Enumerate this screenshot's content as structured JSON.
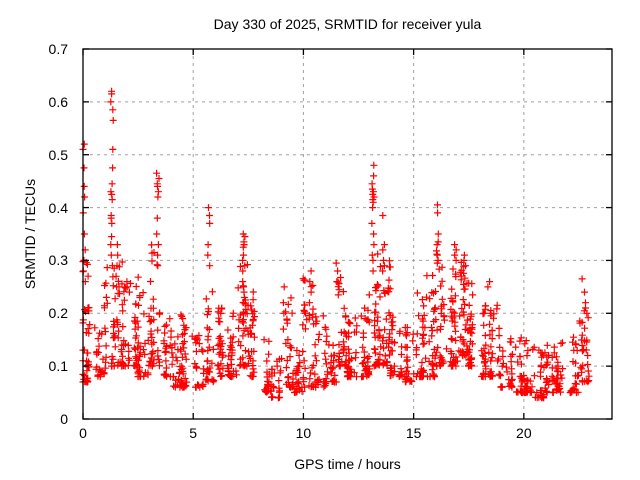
{
  "page": {
    "background": "#ffffff"
  },
  "chart_data": {
    "type": "scatter",
    "title": "Day 330 of 2025, SRMTID for receiver yula",
    "xlabel": "GPS time / hours",
    "ylabel": "SRMTID / TECUs",
    "xlim": [
      0,
      24
    ],
    "ylim": [
      0,
      0.7
    ],
    "xticks": [
      {
        "value": 0,
        "label": "0"
      },
      {
        "value": 5,
        "label": "5"
      },
      {
        "value": 10,
        "label": "10"
      },
      {
        "value": 15,
        "label": "15"
      },
      {
        "value": 20,
        "label": "20"
      }
    ],
    "yticks": [
      {
        "value": 0,
        "label": "0"
      },
      {
        "value": 0.1,
        "label": "0.1"
      },
      {
        "value": 0.2,
        "label": "0.2"
      },
      {
        "value": 0.3,
        "label": "0.3"
      },
      {
        "value": 0.4,
        "label": "0.4"
      },
      {
        "value": 0.5,
        "label": "0.5"
      },
      {
        "value": 0.6,
        "label": "0.6"
      },
      {
        "value": 0.7,
        "label": "0.7"
      }
    ],
    "grid": true,
    "legend": "none",
    "marker": "plus",
    "colors": {
      "marker": "#ff0000",
      "grid": "#a0a0a0",
      "axis": "#000000",
      "text": "#000000",
      "background": "#ffffff"
    },
    "point_cloud": {
      "seed": 20251126,
      "band_width": 0.5,
      "skew": 2.2,
      "bands": [
        [
          0.0,
          40,
          0.07,
          0.3
        ],
        [
          0.5,
          26,
          0.08,
          0.2
        ],
        [
          1.0,
          30,
          0.1,
          0.3
        ],
        [
          1.5,
          36,
          0.1,
          0.33
        ],
        [
          2.0,
          30,
          0.1,
          0.27
        ],
        [
          2.5,
          34,
          0.08,
          0.28
        ],
        [
          3.0,
          34,
          0.1,
          0.33
        ],
        [
          3.5,
          26,
          0.08,
          0.22
        ],
        [
          4.0,
          26,
          0.06,
          0.16
        ],
        [
          4.5,
          30,
          0.06,
          0.2
        ],
        [
          5.0,
          26,
          0.06,
          0.16
        ],
        [
          5.5,
          30,
          0.07,
          0.28
        ],
        [
          6.0,
          30,
          0.08,
          0.22
        ],
        [
          6.5,
          30,
          0.08,
          0.22
        ],
        [
          7.0,
          36,
          0.1,
          0.3
        ],
        [
          7.5,
          30,
          0.08,
          0.25
        ],
        [
          8.0,
          26,
          0.05,
          0.15
        ],
        [
          8.5,
          22,
          0.04,
          0.13
        ],
        [
          9.0,
          28,
          0.06,
          0.24
        ],
        [
          9.5,
          26,
          0.05,
          0.15
        ],
        [
          10.0,
          30,
          0.06,
          0.27
        ],
        [
          10.5,
          28,
          0.06,
          0.2
        ],
        [
          11.0,
          28,
          0.07,
          0.2
        ],
        [
          11.5,
          34,
          0.1,
          0.29
        ],
        [
          12.0,
          32,
          0.08,
          0.2
        ],
        [
          12.5,
          34,
          0.08,
          0.24
        ],
        [
          13.0,
          40,
          0.1,
          0.33
        ],
        [
          13.5,
          34,
          0.1,
          0.33
        ],
        [
          14.0,
          32,
          0.08,
          0.2
        ],
        [
          14.5,
          30,
          0.07,
          0.18
        ],
        [
          15.0,
          32,
          0.08,
          0.25
        ],
        [
          15.5,
          32,
          0.08,
          0.28
        ],
        [
          16.0,
          34,
          0.1,
          0.33
        ],
        [
          16.5,
          38,
          0.1,
          0.3
        ],
        [
          17.0,
          40,
          0.12,
          0.3
        ],
        [
          17.5,
          34,
          0.1,
          0.27
        ],
        [
          18.0,
          32,
          0.08,
          0.22
        ],
        [
          18.5,
          30,
          0.08,
          0.24
        ],
        [
          19.0,
          28,
          0.06,
          0.16
        ],
        [
          19.5,
          28,
          0.05,
          0.16
        ],
        [
          20.0,
          28,
          0.05,
          0.15
        ],
        [
          20.5,
          28,
          0.04,
          0.14
        ],
        [
          21.0,
          28,
          0.05,
          0.14
        ],
        [
          21.5,
          26,
          0.05,
          0.15
        ],
        [
          22.0,
          24,
          0.05,
          0.16
        ],
        [
          22.5,
          30,
          0.07,
          0.22,
          0.45
        ]
      ],
      "spikes": [
        {
          "x": 0.05,
          "ys": [
            0.52,
            0.51,
            0.475,
            0.44,
            0.42,
            0.39,
            0.35,
            0.32,
            0.3,
            0.28,
            0.26
          ]
        },
        {
          "x": 1.32,
          "ys": [
            0.62,
            0.615,
            0.6,
            0.585,
            0.565,
            0.51,
            0.475,
            0.445,
            0.43,
            0.425,
            0.415,
            0.385,
            0.38,
            0.37,
            0.345,
            0.33,
            0.31,
            0.29
          ]
        },
        {
          "x": 1.55,
          "ys": [
            0.33,
            0.31,
            0.29,
            0.27,
            0.25
          ]
        },
        {
          "x": 2.05,
          "ys": [
            0.26,
            0.25,
            0.24
          ]
        },
        {
          "x": 3.4,
          "ys": [
            0.465,
            0.455,
            0.445,
            0.44,
            0.43,
            0.42,
            0.38,
            0.35,
            0.33,
            0.31,
            0.29
          ]
        },
        {
          "x": 5.7,
          "ys": [
            0.4,
            0.385,
            0.37,
            0.33,
            0.31,
            0.29
          ]
        },
        {
          "x": 7.3,
          "ys": [
            0.35,
            0.345,
            0.335,
            0.33,
            0.325,
            0.31,
            0.3,
            0.29,
            0.28,
            0.26,
            0.25,
            0.24,
            0.22,
            0.2
          ]
        },
        {
          "x": 9.15,
          "ys": [
            0.25,
            0.22,
            0.2,
            0.17
          ]
        },
        {
          "x": 10.3,
          "ys": [
            0.28,
            0.26,
            0.24,
            0.22
          ]
        },
        {
          "x": 11.5,
          "ys": [
            0.295,
            0.28,
            0.26
          ]
        },
        {
          "x": 13.15,
          "ys": [
            0.48,
            0.46,
            0.445,
            0.435,
            0.43,
            0.425,
            0.42,
            0.415,
            0.41,
            0.4,
            0.37,
            0.35,
            0.33,
            0.31,
            0.3,
            0.28
          ]
        },
        {
          "x": 13.65,
          "ys": [
            0.385,
            0.33,
            0.32,
            0.3,
            0.29,
            0.28
          ]
        },
        {
          "x": 16.1,
          "ys": [
            0.405,
            0.39,
            0.35,
            0.335,
            0.33,
            0.31,
            0.3,
            0.295
          ]
        },
        {
          "x": 16.9,
          "ys": [
            0.33,
            0.32,
            0.31,
            0.3
          ]
        },
        {
          "x": 17.3,
          "ys": [
            0.31,
            0.3,
            0.29
          ]
        },
        {
          "x": 18.4,
          "ys": [
            0.26,
            0.25
          ]
        },
        {
          "x": 22.7,
          "ys": [
            0.265,
            0.24
          ]
        },
        {
          "x": 22.85,
          "ys": [
            0.22,
            0.21,
            0.2
          ]
        }
      ]
    }
  }
}
